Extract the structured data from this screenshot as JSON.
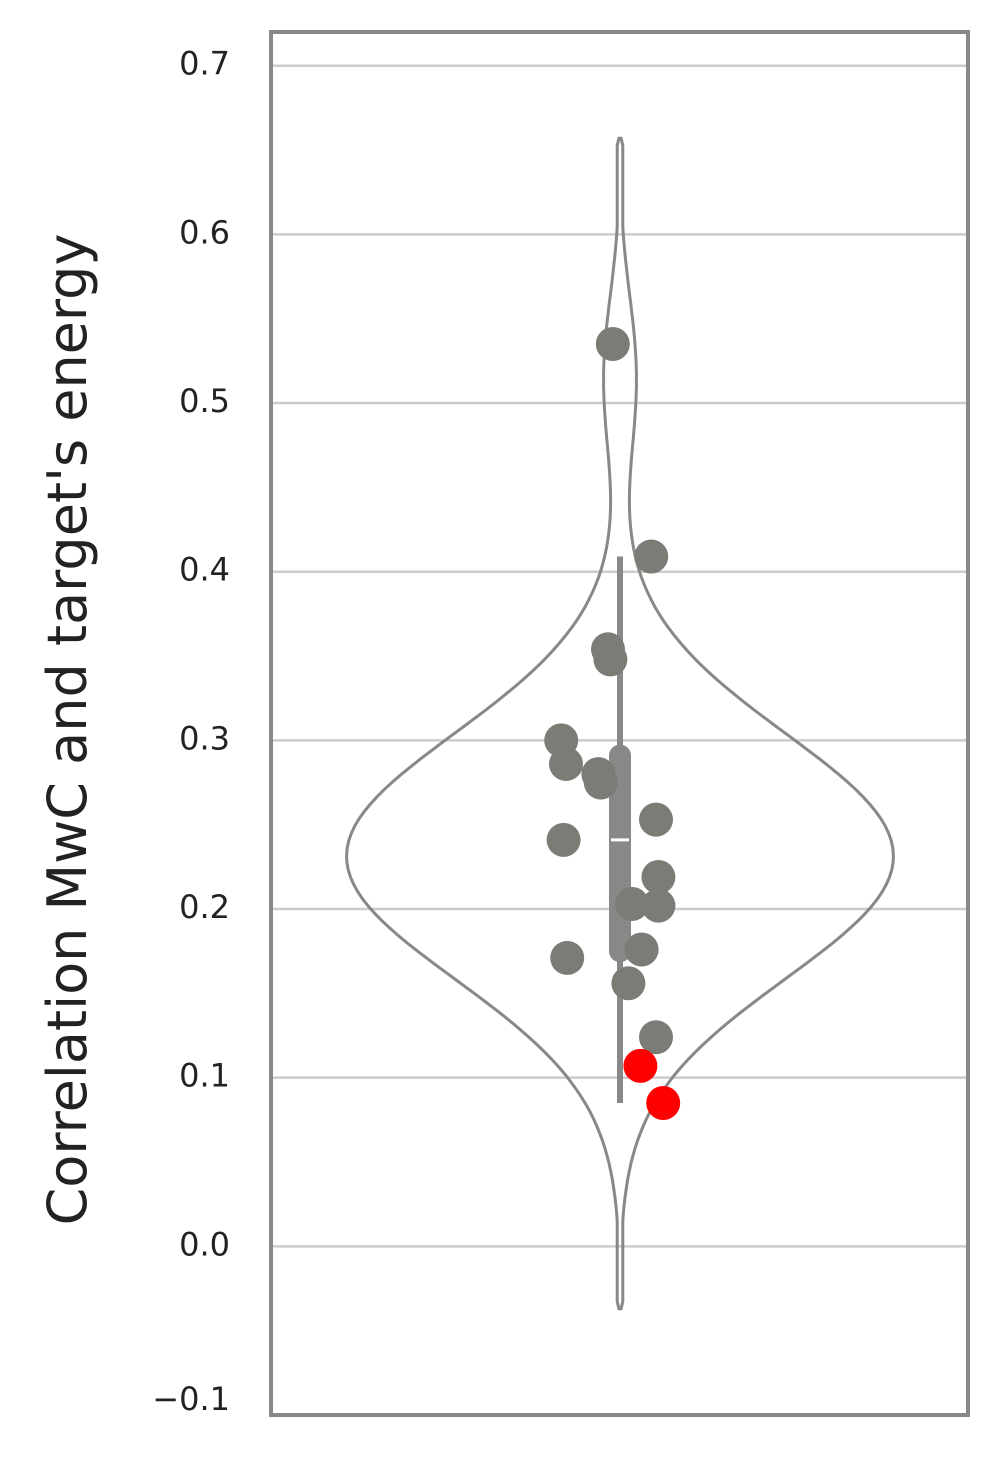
{
  "chart_data": {
    "type": "violin",
    "ylabel": "Correlation MwC and target's energy",
    "ylim": [
      -0.1,
      0.72
    ],
    "yticks": [
      -0.1,
      0.0,
      0.1,
      0.2,
      0.3,
      0.4,
      0.5,
      0.6,
      0.7
    ],
    "ytick_labels": [
      "−0.1",
      "0.0",
      "0.1",
      "0.2",
      "0.3",
      "0.4",
      "0.5",
      "0.6",
      "0.7"
    ],
    "grid": "horizontal",
    "violin": {
      "extent": [
        -0.037,
        0.657
      ],
      "box": {
        "q1": 0.175,
        "median": 0.241,
        "q3": 0.291,
        "whisker_low": 0.085,
        "whisker_high": 0.409
      },
      "color": "#888888"
    },
    "points": [
      {
        "x": -0.06,
        "y": 0.535,
        "color": "#7a7c76"
      },
      {
        "x": 0.26,
        "y": 0.409,
        "color": "#7a7c76"
      },
      {
        "x": -0.1,
        "y": 0.354,
        "color": "#7a7c76"
      },
      {
        "x": -0.08,
        "y": 0.348,
        "color": "#7a7c76"
      },
      {
        "x": -0.49,
        "y": 0.3,
        "color": "#7a7c76"
      },
      {
        "x": -0.45,
        "y": 0.286,
        "color": "#7a7c76"
      },
      {
        "x": -0.18,
        "y": 0.28,
        "color": "#7a7c76"
      },
      {
        "x": -0.16,
        "y": 0.275,
        "color": "#7a7c76"
      },
      {
        "x": 0.3,
        "y": 0.253,
        "color": "#7a7c76"
      },
      {
        "x": -0.47,
        "y": 0.241,
        "color": "#7a7c76"
      },
      {
        "x": 0.32,
        "y": 0.219,
        "color": "#7a7c76"
      },
      {
        "x": 0.1,
        "y": 0.203,
        "color": "#7a7c76"
      },
      {
        "x": 0.32,
        "y": 0.202,
        "color": "#7a7c76"
      },
      {
        "x": 0.18,
        "y": 0.176,
        "color": "#7a7c76"
      },
      {
        "x": -0.44,
        "y": 0.171,
        "color": "#7a7c76"
      },
      {
        "x": 0.07,
        "y": 0.156,
        "color": "#7a7c76"
      },
      {
        "x": 0.3,
        "y": 0.124,
        "color": "#7a7c76"
      },
      {
        "x": 0.17,
        "y": 0.107,
        "color": "#ff0000"
      },
      {
        "x": 0.36,
        "y": 0.085,
        "color": "#ff0000"
      }
    ]
  }
}
